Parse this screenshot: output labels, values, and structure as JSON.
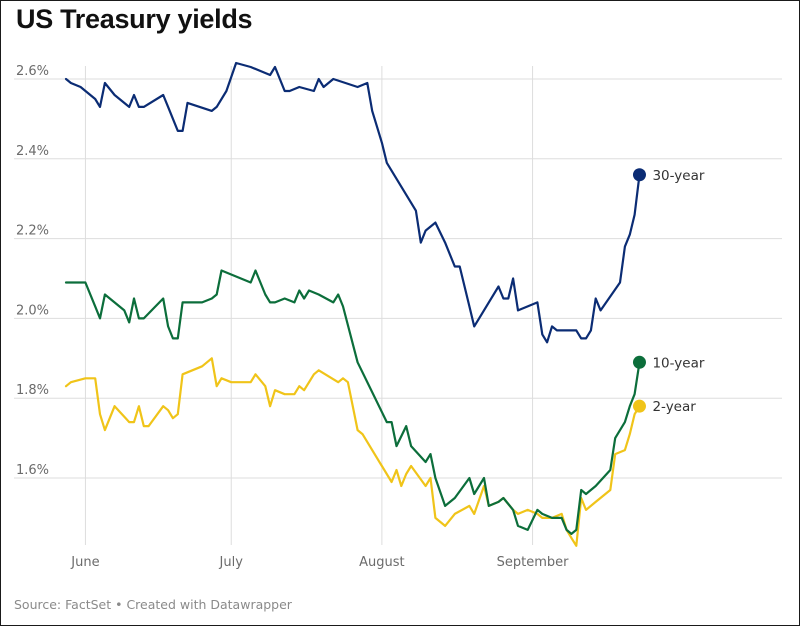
{
  "title": "US Treasury yields",
  "footer": "Source: FactSet • Created with Datawrapper",
  "colors": {
    "30-year": "#0b2c74",
    "10-year": "#0c6e3b",
    "2-year": "#f0c419",
    "grid": "#dddddd"
  },
  "chart_data": {
    "type": "line",
    "title": "US Treasury yields",
    "xlabel": "",
    "ylabel": "",
    "ylim": [
      1.43,
      2.69
    ],
    "yticks": [
      1.6,
      1.8,
      2.0,
      2.2,
      2.4,
      2.6
    ],
    "ytick_labels": [
      "1.6%",
      "1.8%",
      "2.0%",
      "2.2%",
      "2.4%",
      "2.6%"
    ],
    "xticks": [
      {
        "date": "2019-06-01",
        "label": "June"
      },
      {
        "date": "2019-07-01",
        "label": "July"
      },
      {
        "date": "2019-08-01",
        "label": "August"
      },
      {
        "date": "2019-09-01",
        "label": "September"
      }
    ],
    "grid": true,
    "legend": "direct labels at line ends",
    "series": [
      {
        "name": "30-year",
        "end_label": "30-year",
        "points": [
          [
            "2019-05-28",
            2.6
          ],
          [
            "2019-05-29",
            2.59
          ],
          [
            "2019-05-31",
            2.58
          ],
          [
            "2019-06-03",
            2.55
          ],
          [
            "2019-06-04",
            2.53
          ],
          [
            "2019-06-05",
            2.59
          ],
          [
            "2019-06-07",
            2.56
          ],
          [
            "2019-06-10",
            2.53
          ],
          [
            "2019-06-11",
            2.56
          ],
          [
            "2019-06-12",
            2.53
          ],
          [
            "2019-06-13",
            2.53
          ],
          [
            "2019-06-17",
            2.56
          ],
          [
            "2019-06-18",
            2.53
          ],
          [
            "2019-06-20",
            2.47
          ],
          [
            "2019-06-21",
            2.47
          ],
          [
            "2019-06-22",
            2.54
          ],
          [
            "2019-06-27",
            2.52
          ],
          [
            "2019-06-28",
            2.53
          ],
          [
            "2019-06-30",
            2.57
          ],
          [
            "2019-07-02",
            2.64
          ],
          [
            "2019-07-05",
            2.63
          ],
          [
            "2019-07-09",
            2.61
          ],
          [
            "2019-07-10",
            2.63
          ],
          [
            "2019-07-12",
            2.57
          ],
          [
            "2019-07-13",
            2.57
          ],
          [
            "2019-07-15",
            2.58
          ],
          [
            "2019-07-18",
            2.57
          ],
          [
            "2019-07-19",
            2.6
          ],
          [
            "2019-07-20",
            2.58
          ],
          [
            "2019-07-22",
            2.6
          ],
          [
            "2019-07-27",
            2.58
          ],
          [
            "2019-07-29",
            2.59
          ],
          [
            "2019-07-30",
            2.52
          ],
          [
            "2019-08-01",
            2.44
          ],
          [
            "2019-08-02",
            2.39
          ],
          [
            "2019-08-08",
            2.27
          ],
          [
            "2019-08-09",
            2.19
          ],
          [
            "2019-08-10",
            2.22
          ],
          [
            "2019-08-12",
            2.24
          ],
          [
            "2019-08-14",
            2.19
          ],
          [
            "2019-08-16",
            2.13
          ],
          [
            "2019-08-17",
            2.13
          ],
          [
            "2019-08-19",
            2.03
          ],
          [
            "2019-08-20",
            1.98
          ],
          [
            "2019-08-21",
            2.0
          ],
          [
            "2019-08-23",
            2.04
          ],
          [
            "2019-08-25",
            2.08
          ],
          [
            "2019-08-26",
            2.05
          ],
          [
            "2019-08-27",
            2.05
          ],
          [
            "2019-08-28",
            2.1
          ],
          [
            "2019-08-29",
            2.02
          ],
          [
            "2019-08-31",
            2.03
          ],
          [
            "2019-09-02",
            2.04
          ],
          [
            "2019-09-03",
            1.96
          ],
          [
            "2019-09-04",
            1.94
          ],
          [
            "2019-09-05",
            1.98
          ],
          [
            "2019-09-06",
            1.97
          ],
          [
            "2019-09-10",
            1.97
          ],
          [
            "2019-09-11",
            1.95
          ],
          [
            "2019-09-12",
            1.95
          ],
          [
            "2019-09-13",
            1.97
          ],
          [
            "2019-09-14",
            2.05
          ],
          [
            "2019-09-15",
            2.02
          ],
          [
            "2019-09-19",
            2.09
          ],
          [
            "2019-09-20",
            2.18
          ],
          [
            "2019-09-21",
            2.21
          ],
          [
            "2019-09-22",
            2.26
          ],
          [
            "2019-09-23",
            2.36
          ]
        ]
      },
      {
        "name": "10-year",
        "end_label": "10-year",
        "points": [
          [
            "2019-05-28",
            2.09
          ],
          [
            "2019-05-29",
            2.09
          ],
          [
            "2019-06-01",
            2.09
          ],
          [
            "2019-06-03",
            2.03
          ],
          [
            "2019-06-04",
            2.0
          ],
          [
            "2019-06-05",
            2.06
          ],
          [
            "2019-06-09",
            2.02
          ],
          [
            "2019-06-10",
            1.99
          ],
          [
            "2019-06-11",
            2.05
          ],
          [
            "2019-06-12",
            2.0
          ],
          [
            "2019-06-13",
            2.0
          ],
          [
            "2019-06-17",
            2.05
          ],
          [
            "2019-06-18",
            1.98
          ],
          [
            "2019-06-19",
            1.95
          ],
          [
            "2019-06-20",
            1.95
          ],
          [
            "2019-06-21",
            2.04
          ],
          [
            "2019-06-25",
            2.04
          ],
          [
            "2019-06-27",
            2.05
          ],
          [
            "2019-06-28",
            2.06
          ],
          [
            "2019-06-29",
            2.12
          ],
          [
            "2019-07-01",
            2.11
          ],
          [
            "2019-07-05",
            2.09
          ],
          [
            "2019-07-06",
            2.12
          ],
          [
            "2019-07-08",
            2.06
          ],
          [
            "2019-07-09",
            2.04
          ],
          [
            "2019-07-10",
            2.04
          ],
          [
            "2019-07-12",
            2.05
          ],
          [
            "2019-07-14",
            2.04
          ],
          [
            "2019-07-15",
            2.07
          ],
          [
            "2019-07-16",
            2.05
          ],
          [
            "2019-07-17",
            2.07
          ],
          [
            "2019-07-19",
            2.06
          ],
          [
            "2019-07-22",
            2.04
          ],
          [
            "2019-07-23",
            2.06
          ],
          [
            "2019-07-24",
            2.03
          ],
          [
            "2019-07-27",
            1.89
          ],
          [
            "2019-08-02",
            1.74
          ],
          [
            "2019-08-03",
            1.74
          ],
          [
            "2019-08-04",
            1.68
          ],
          [
            "2019-08-06",
            1.73
          ],
          [
            "2019-08-07",
            1.68
          ],
          [
            "2019-08-10",
            1.64
          ],
          [
            "2019-08-11",
            1.66
          ],
          [
            "2019-08-12",
            1.6
          ],
          [
            "2019-08-14",
            1.53
          ],
          [
            "2019-08-16",
            1.55
          ],
          [
            "2019-08-19",
            1.6
          ],
          [
            "2019-08-20",
            1.56
          ],
          [
            "2019-08-22",
            1.6
          ],
          [
            "2019-08-23",
            1.53
          ],
          [
            "2019-08-25",
            1.54
          ],
          [
            "2019-08-26",
            1.55
          ],
          [
            "2019-08-28",
            1.52
          ],
          [
            "2019-08-29",
            1.48
          ],
          [
            "2019-08-31",
            1.47
          ],
          [
            "2019-09-02",
            1.52
          ],
          [
            "2019-09-03",
            1.51
          ],
          [
            "2019-09-05",
            1.5
          ],
          [
            "2019-09-07",
            1.5
          ],
          [
            "2019-09-08",
            1.47
          ],
          [
            "2019-09-09",
            1.46
          ],
          [
            "2019-09-10",
            1.47
          ],
          [
            "2019-09-11",
            1.57
          ],
          [
            "2019-09-12",
            1.56
          ],
          [
            "2019-09-14",
            1.58
          ],
          [
            "2019-09-17",
            1.62
          ],
          [
            "2019-09-18",
            1.7
          ],
          [
            "2019-09-20",
            1.74
          ],
          [
            "2019-09-21",
            1.78
          ],
          [
            "2019-09-22",
            1.81
          ],
          [
            "2019-09-23",
            1.89
          ]
        ]
      },
      {
        "name": "2-year",
        "end_label": "2-year",
        "points": [
          [
            "2019-05-28",
            1.83
          ],
          [
            "2019-05-29",
            1.84
          ],
          [
            "2019-06-01",
            1.85
          ],
          [
            "2019-06-03",
            1.85
          ],
          [
            "2019-06-04",
            1.76
          ],
          [
            "2019-06-05",
            1.72
          ],
          [
            "2019-06-07",
            1.78
          ],
          [
            "2019-06-10",
            1.74
          ],
          [
            "2019-06-11",
            1.74
          ],
          [
            "2019-06-12",
            1.78
          ],
          [
            "2019-06-13",
            1.73
          ],
          [
            "2019-06-14",
            1.73
          ],
          [
            "2019-06-17",
            1.78
          ],
          [
            "2019-06-18",
            1.77
          ],
          [
            "2019-06-19",
            1.75
          ],
          [
            "2019-06-20",
            1.76
          ],
          [
            "2019-06-21",
            1.86
          ],
          [
            "2019-06-25",
            1.88
          ],
          [
            "2019-06-27",
            1.9
          ],
          [
            "2019-06-28",
            1.83
          ],
          [
            "2019-06-29",
            1.85
          ],
          [
            "2019-07-01",
            1.84
          ],
          [
            "2019-07-05",
            1.84
          ],
          [
            "2019-07-06",
            1.86
          ],
          [
            "2019-07-08",
            1.83
          ],
          [
            "2019-07-09",
            1.78
          ],
          [
            "2019-07-10",
            1.82
          ],
          [
            "2019-07-12",
            1.81
          ],
          [
            "2019-07-14",
            1.81
          ],
          [
            "2019-07-15",
            1.83
          ],
          [
            "2019-07-16",
            1.82
          ],
          [
            "2019-07-18",
            1.86
          ],
          [
            "2019-07-19",
            1.87
          ],
          [
            "2019-07-23",
            1.84
          ],
          [
            "2019-07-24",
            1.85
          ],
          [
            "2019-07-25",
            1.84
          ],
          [
            "2019-07-27",
            1.72
          ],
          [
            "2019-07-28",
            1.71
          ],
          [
            "2019-08-03",
            1.59
          ],
          [
            "2019-08-04",
            1.62
          ],
          [
            "2019-08-05",
            1.58
          ],
          [
            "2019-08-06",
            1.61
          ],
          [
            "2019-08-07",
            1.63
          ],
          [
            "2019-08-10",
            1.58
          ],
          [
            "2019-08-11",
            1.6
          ],
          [
            "2019-08-12",
            1.5
          ],
          [
            "2019-08-14",
            1.48
          ],
          [
            "2019-08-16",
            1.51
          ],
          [
            "2019-08-19",
            1.53
          ],
          [
            "2019-08-20",
            1.51
          ],
          [
            "2019-08-22",
            1.58
          ],
          [
            "2019-08-23",
            1.53
          ],
          [
            "2019-08-25",
            1.54
          ],
          [
            "2019-08-26",
            1.55
          ],
          [
            "2019-08-28",
            1.52
          ],
          [
            "2019-08-29",
            1.51
          ],
          [
            "2019-08-31",
            1.52
          ],
          [
            "2019-09-02",
            1.51
          ],
          [
            "2019-09-03",
            1.5
          ],
          [
            "2019-09-05",
            1.5
          ],
          [
            "2019-09-07",
            1.51
          ],
          [
            "2019-09-08",
            1.47
          ],
          [
            "2019-09-09",
            1.45
          ],
          [
            "2019-09-10",
            1.43
          ],
          [
            "2019-09-11",
            1.55
          ],
          [
            "2019-09-12",
            1.52
          ],
          [
            "2019-09-14",
            1.54
          ],
          [
            "2019-09-17",
            1.57
          ],
          [
            "2019-09-18",
            1.66
          ],
          [
            "2019-09-20",
            1.67
          ],
          [
            "2019-09-21",
            1.71
          ],
          [
            "2019-09-22",
            1.76
          ],
          [
            "2019-09-23",
            1.78
          ]
        ]
      }
    ]
  }
}
